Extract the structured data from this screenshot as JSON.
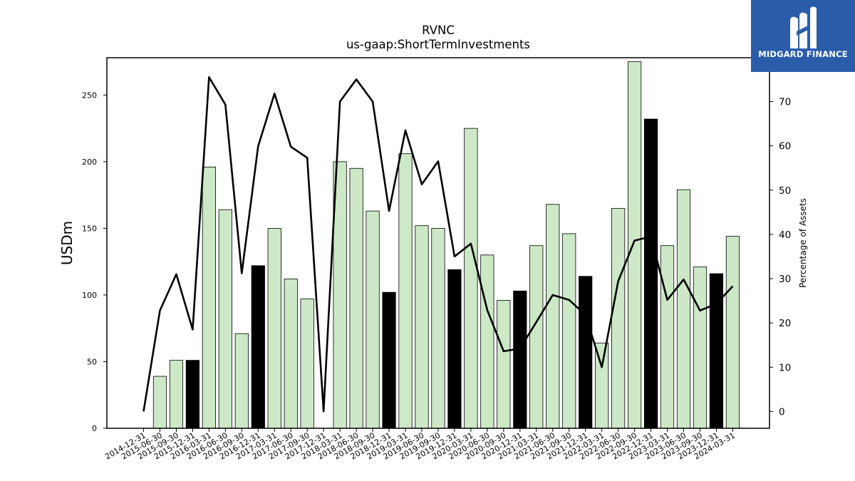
{
  "chart_data": {
    "type": "bar+line",
    "title": "RVNC",
    "subtitle": "us-gaap:ShortTermInvestments",
    "ylabel": "USDm",
    "y2label": "Percentage of Assets",
    "ylim": [
      0,
      278
    ],
    "y2lim": [
      -3.8,
      79.9
    ],
    "yticks": [
      0,
      50,
      100,
      150,
      200,
      250
    ],
    "y2ticks": [
      0,
      10,
      20,
      30,
      40,
      50,
      60,
      70
    ],
    "categories": [
      "2014-12-31",
      "2015-06-30",
      "2015-09-30",
      "2015-12-31",
      "2016-03-31",
      "2016-06-30",
      "2016-09-30",
      "2016-12-31",
      "2017-03-31",
      "2017-06-30",
      "2017-09-30",
      "2017-12-31",
      "2018-03-31",
      "2018-06-30",
      "2018-09-30",
      "2018-12-31",
      "2019-03-31",
      "2019-06-30",
      "2019-09-30",
      "2019-12-31",
      "2020-03-31",
      "2020-06-30",
      "2020-09-30",
      "2020-12-31",
      "2021-03-31",
      "2021-06-30",
      "2021-09-30",
      "2021-12-31",
      "2022-03-31",
      "2022-06-30",
      "2022-09-30",
      "2022-12-31",
      "2023-03-31",
      "2023-06-30",
      "2023-09-30",
      "2023-12-31",
      "2024-03-31"
    ],
    "series": [
      {
        "kind": "bar",
        "values": [
          0,
          39,
          51,
          51,
          196,
          164,
          71,
          122,
          150,
          112,
          97,
          0,
          200,
          195,
          163,
          102,
          206,
          152,
          150,
          119,
          225,
          130,
          96,
          103,
          137,
          168,
          146,
          114,
          64,
          165,
          275,
          232,
          137,
          179,
          121,
          116,
          144
        ],
        "highlight": [
          false,
          false,
          false,
          true,
          false,
          false,
          false,
          true,
          false,
          false,
          false,
          false,
          false,
          false,
          false,
          true,
          false,
          false,
          false,
          true,
          false,
          false,
          false,
          true,
          false,
          false,
          false,
          true,
          false,
          false,
          false,
          true,
          false,
          false,
          false,
          true,
          false
        ]
      },
      {
        "kind": "line",
        "axis": "right",
        "values": [
          0,
          22.8,
          31,
          18.5,
          75.5,
          69.3,
          31.2,
          59.9,
          71.8,
          59.8,
          57.3,
          0,
          70,
          75,
          70,
          45.3,
          63.5,
          51.3,
          56.5,
          35,
          37.9,
          22.9,
          13.6,
          14.2,
          20.2,
          26.3,
          25.2,
          21.8,
          10,
          29.4,
          38.6,
          39.5,
          25.2,
          29.8,
          22.8,
          24.3,
          28.3
        ]
      }
    ],
    "colors": {
      "bar": "#cce8c6",
      "bar_highlight": "#000000",
      "line": "#000000"
    },
    "grid": false,
    "legend": "none"
  },
  "logo": {
    "text": "MIDGARD FINANCE"
  }
}
